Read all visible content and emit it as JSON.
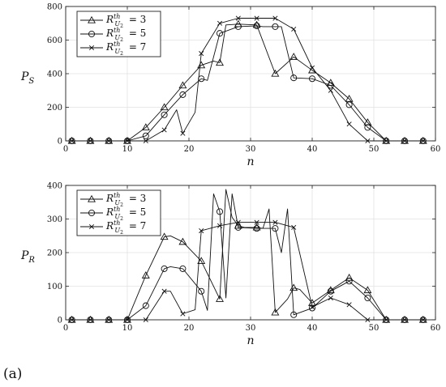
{
  "panel_label": "(a)",
  "chart_data": [
    {
      "type": "line",
      "ylabel": "P_S",
      "xlabel": "n",
      "xlim": [
        0,
        60
      ],
      "ylim": [
        0,
        800
      ],
      "xticks": [
        0,
        10,
        20,
        30,
        40,
        50,
        60
      ],
      "yticks": [
        0,
        200,
        400,
        600,
        800
      ],
      "grid": true,
      "legend_position": "top-left",
      "series": [
        {
          "name": "R^{th}_{U_2} = 3",
          "marker": "triangle",
          "x": [
            1,
            4,
            7,
            10,
            13,
            16,
            19,
            22,
            24,
            25,
            26,
            28,
            31,
            34,
            37,
            40,
            43,
            46,
            49,
            52,
            55,
            58
          ],
          "y": [
            0,
            0,
            0,
            0,
            80,
            200,
            330,
            450,
            475,
            465,
            690,
            695,
            690,
            400,
            500,
            420,
            345,
            250,
            110,
            0,
            0,
            0
          ],
          "marker_x": [
            1,
            4,
            7,
            10,
            13,
            16,
            19,
            22,
            25,
            28,
            31,
            34,
            37,
            40,
            43,
            46,
            49,
            52,
            55,
            58
          ]
        },
        {
          "name": "R^{th}_{U_2} = 5",
          "marker": "circle",
          "x": [
            1,
            4,
            7,
            10,
            13,
            16,
            19,
            22,
            23,
            25,
            28,
            31,
            32,
            34,
            35,
            37,
            40,
            43,
            46,
            49,
            52,
            55,
            58
          ],
          "y": [
            0,
            0,
            0,
            0,
            30,
            155,
            275,
            370,
            360,
            640,
            680,
            685,
            680,
            680,
            680,
            375,
            370,
            330,
            215,
            80,
            0,
            0,
            0
          ],
          "marker_x": [
            1,
            4,
            7,
            10,
            13,
            16,
            19,
            22,
            25,
            28,
            31,
            34,
            37,
            40,
            43,
            46,
            49,
            52,
            55,
            58
          ]
        },
        {
          "name": "R^{th}_{U_2} = 7",
          "marker": "x",
          "x": [
            1,
            4,
            7,
            10,
            13,
            16,
            18,
            19,
            21,
            22,
            25,
            28,
            31,
            34,
            37,
            40,
            43,
            46,
            49,
            52,
            55,
            58
          ],
          "y": [
            0,
            0,
            0,
            0,
            0,
            65,
            185,
            45,
            170,
            520,
            700,
            730,
            730,
            730,
            665,
            435,
            300,
            100,
            0,
            0,
            0,
            0
          ],
          "marker_x": [
            1,
            4,
            7,
            10,
            13,
            16,
            19,
            22,
            25,
            28,
            31,
            34,
            37,
            40,
            43,
            46,
            49,
            52,
            55,
            58
          ]
        }
      ]
    },
    {
      "type": "line",
      "ylabel": "P_R",
      "xlabel": "n",
      "xlim": [
        0,
        60
      ],
      "ylim": [
        0,
        400
      ],
      "xticks": [
        0,
        10,
        20,
        30,
        40,
        50,
        60
      ],
      "yticks": [
        0,
        100,
        200,
        300,
        400
      ],
      "grid": true,
      "legend_position": "top-left",
      "series": [
        {
          "name": "R^{th}_{U_2} = 3",
          "marker": "triangle",
          "x": [
            1,
            4,
            7,
            10,
            13,
            16,
            17,
            19,
            22,
            25,
            26,
            27,
            28,
            29,
            30,
            31,
            32,
            33,
            34,
            36,
            37,
            38,
            40,
            43,
            46,
            49,
            52,
            55,
            58
          ],
          "y": [
            0,
            0,
            0,
            0,
            132,
            247,
            250,
            232,
            175,
            62,
            388,
            305,
            280,
            275,
            275,
            275,
            272,
            330,
            22,
            62,
            95,
            90,
            50,
            88,
            125,
            88,
            0,
            0,
            0
          ],
          "marker_x": [
            1,
            4,
            7,
            10,
            13,
            16,
            19,
            22,
            25,
            28,
            31,
            34,
            37,
            40,
            43,
            46,
            49,
            52,
            55,
            58
          ]
        },
        {
          "name": "R^{th}_{U_2} = 5",
          "marker": "circle",
          "x": [
            1,
            4,
            7,
            10,
            13,
            16,
            17,
            19,
            22,
            23,
            24,
            25,
            26,
            27,
            28,
            31,
            34,
            35,
            36,
            37,
            40,
            43,
            46,
            49,
            52,
            55,
            58
          ],
          "y": [
            0,
            0,
            0,
            0,
            42,
            152,
            158,
            152,
            85,
            28,
            375,
            322,
            65,
            375,
            275,
            272,
            272,
            200,
            330,
            15,
            35,
            85,
            115,
            65,
            0,
            0,
            0
          ],
          "marker_x": [
            1,
            4,
            7,
            10,
            13,
            16,
            19,
            22,
            25,
            28,
            31,
            34,
            37,
            40,
            43,
            46,
            49,
            52,
            55,
            58
          ]
        },
        {
          "name": "R^{th}_{U_2} = 7",
          "marker": "x",
          "x": [
            1,
            4,
            7,
            10,
            13,
            16,
            17,
            19,
            21,
            22,
            25,
            28,
            31,
            34,
            37,
            40,
            43,
            46,
            49,
            52,
            55,
            58
          ],
          "y": [
            0,
            0,
            0,
            0,
            0,
            85,
            85,
            18,
            30,
            265,
            280,
            290,
            290,
            290,
            275,
            38,
            65,
            45,
            0,
            0,
            0,
            0
          ],
          "marker_x": [
            1,
            4,
            7,
            10,
            13,
            16,
            19,
            22,
            25,
            28,
            31,
            34,
            37,
            40,
            43,
            46,
            49,
            52,
            55,
            58
          ]
        }
      ]
    }
  ]
}
